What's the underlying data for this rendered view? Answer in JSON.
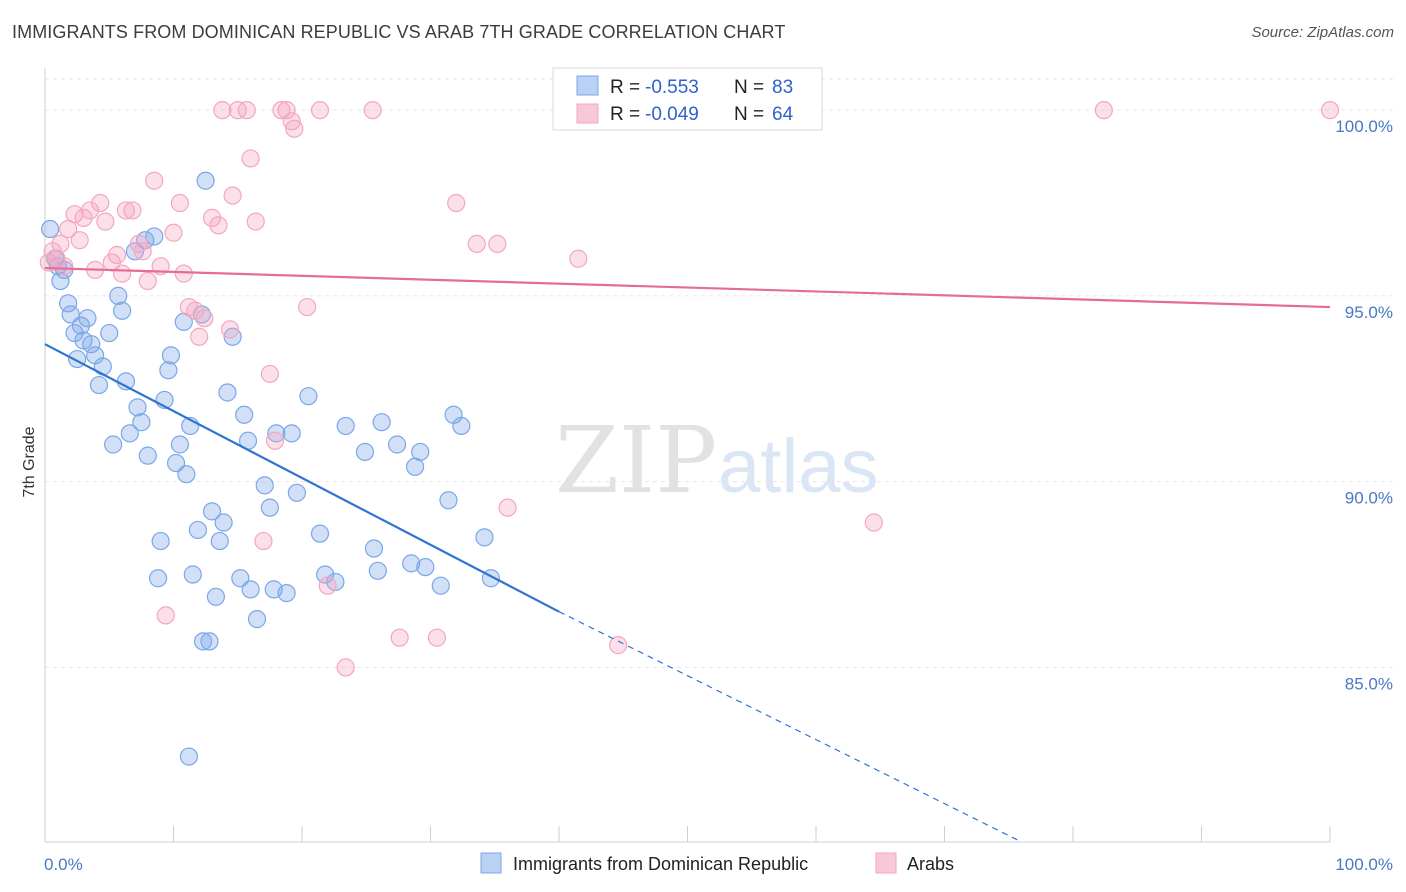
{
  "title": "IMMIGRANTS FROM DOMINICAN REPUBLIC VS ARAB 7TH GRADE CORRELATION CHART",
  "source": "Source: ZipAtlas.com",
  "watermark": {
    "zip": "ZIP",
    "atlas": "atlas"
  },
  "legend": {
    "rows": [
      {
        "r_label": "R =",
        "r_value": "-0.553",
        "n_label": "N =",
        "n_value": "83"
      },
      {
        "r_label": "R =",
        "r_value": "-0.049",
        "n_label": "N =",
        "n_value": "64"
      }
    ]
  },
  "chart_data": {
    "type": "scatter",
    "title": "IMMIGRANTS FROM DOMINICAN REPUBLIC VS ARAB 7TH GRADE CORRELATION CHART",
    "xlabel": "",
    "ylabel": "7th Grade",
    "xlim": [
      0,
      100
    ],
    "ylim": [
      80.3,
      101.0
    ],
    "x_tick_labels": [
      "0.0%",
      "100.0%"
    ],
    "y_ticks": [
      85,
      90,
      95,
      100
    ],
    "y_tick_labels": [
      "85.0%",
      "90.0%",
      "95.0%",
      "100.0%"
    ],
    "grid": true,
    "legend_position": "top-center",
    "series": [
      {
        "name": "Immigrants from Dominican Republic",
        "color": "#7aa7e8",
        "line_color": "#2f74d0",
        "R": -0.553,
        "N": 83,
        "trend": {
          "x0": 0.0,
          "y0": 93.7,
          "x1": 40.0,
          "y1": 86.5,
          "dash_to_x": 76.0,
          "dash_to_y": 80.3
        },
        "points": [
          [
            0.4,
            96.8
          ],
          [
            0.8,
            96.0
          ],
          [
            1.0,
            95.8
          ],
          [
            1.2,
            95.4
          ],
          [
            1.5,
            95.7
          ],
          [
            1.8,
            94.8
          ],
          [
            2.0,
            94.5
          ],
          [
            2.3,
            94.0
          ],
          [
            2.5,
            93.3
          ],
          [
            2.8,
            94.2
          ],
          [
            3.0,
            93.8
          ],
          [
            3.3,
            94.4
          ],
          [
            3.6,
            93.7
          ],
          [
            3.9,
            93.4
          ],
          [
            4.2,
            92.6
          ],
          [
            4.5,
            93.1
          ],
          [
            5.0,
            94.0
          ],
          [
            5.3,
            91.0
          ],
          [
            5.7,
            95.0
          ],
          [
            6.0,
            94.6
          ],
          [
            6.3,
            92.7
          ],
          [
            6.6,
            91.3
          ],
          [
            7.0,
            96.2
          ],
          [
            7.2,
            92.0
          ],
          [
            7.5,
            91.6
          ],
          [
            7.8,
            96.5
          ],
          [
            8.0,
            90.7
          ],
          [
            8.5,
            96.6
          ],
          [
            8.8,
            87.4
          ],
          [
            9.0,
            88.4
          ],
          [
            9.3,
            92.2
          ],
          [
            9.6,
            93.0
          ],
          [
            9.8,
            93.4
          ],
          [
            10.2,
            90.5
          ],
          [
            10.5,
            91.0
          ],
          [
            10.8,
            94.3
          ],
          [
            11.0,
            90.2
          ],
          [
            11.3,
            91.5
          ],
          [
            11.5,
            87.5
          ],
          [
            11.9,
            88.7
          ],
          [
            12.2,
            94.5
          ],
          [
            12.5,
            98.1
          ],
          [
            12.8,
            85.7
          ],
          [
            13.0,
            89.2
          ],
          [
            13.3,
            86.9
          ],
          [
            13.6,
            88.4
          ],
          [
            13.9,
            88.9
          ],
          [
            14.2,
            92.4
          ],
          [
            14.6,
            93.9
          ],
          [
            15.2,
            87.4
          ],
          [
            15.5,
            91.8
          ],
          [
            15.8,
            91.1
          ],
          [
            16.0,
            87.1
          ],
          [
            16.5,
            86.3
          ],
          [
            17.1,
            89.9
          ],
          [
            17.5,
            89.3
          ],
          [
            17.8,
            87.1
          ],
          [
            18.0,
            91.3
          ],
          [
            18.8,
            87.0
          ],
          [
            19.2,
            91.3
          ],
          [
            19.6,
            89.7
          ],
          [
            20.5,
            92.3
          ],
          [
            21.4,
            88.6
          ],
          [
            21.8,
            87.5
          ],
          [
            22.6,
            87.3
          ],
          [
            23.4,
            91.5
          ],
          [
            24.9,
            90.8
          ],
          [
            25.6,
            88.2
          ],
          [
            25.9,
            87.6
          ],
          [
            26.2,
            91.6
          ],
          [
            27.4,
            91.0
          ],
          [
            28.5,
            87.8
          ],
          [
            28.8,
            90.4
          ],
          [
            29.2,
            90.8
          ],
          [
            29.6,
            87.7
          ],
          [
            30.8,
            87.2
          ],
          [
            31.8,
            91.8
          ],
          [
            32.4,
            91.5
          ],
          [
            34.2,
            88.5
          ],
          [
            34.7,
            87.4
          ],
          [
            11.2,
            82.6
          ],
          [
            12.3,
            85.7
          ],
          [
            31.4,
            89.5
          ]
        ]
      },
      {
        "name": "Arabs",
        "color": "#f4a6c0",
        "line_color": "#e56d93",
        "R": -0.049,
        "N": 64,
        "trend": {
          "x0": 0.0,
          "y0": 95.75,
          "x1": 100.0,
          "y1": 94.7
        },
        "points": [
          [
            0.3,
            95.9
          ],
          [
            0.6,
            96.2
          ],
          [
            0.9,
            96.0
          ],
          [
            1.2,
            96.4
          ],
          [
            1.5,
            95.8
          ],
          [
            1.8,
            96.8
          ],
          [
            2.3,
            97.2
          ],
          [
            2.7,
            96.5
          ],
          [
            3.0,
            97.1
          ],
          [
            3.5,
            97.3
          ],
          [
            3.9,
            95.7
          ],
          [
            4.3,
            97.5
          ],
          [
            4.7,
            97.0
          ],
          [
            5.2,
            95.9
          ],
          [
            5.6,
            96.1
          ],
          [
            6.0,
            95.6
          ],
          [
            6.3,
            97.3
          ],
          [
            6.8,
            97.3
          ],
          [
            7.3,
            96.4
          ],
          [
            7.6,
            96.2
          ],
          [
            8.0,
            95.4
          ],
          [
            8.5,
            98.1
          ],
          [
            9.0,
            95.8
          ],
          [
            9.4,
            86.4
          ],
          [
            10.0,
            96.7
          ],
          [
            10.5,
            97.5
          ],
          [
            10.8,
            95.6
          ],
          [
            11.2,
            94.7
          ],
          [
            11.7,
            94.6
          ],
          [
            12.0,
            93.9
          ],
          [
            12.4,
            94.4
          ],
          [
            13.0,
            97.1
          ],
          [
            13.5,
            96.9
          ],
          [
            13.8,
            100.0
          ],
          [
            14.4,
            94.1
          ],
          [
            14.6,
            97.7
          ],
          [
            15.0,
            100.0
          ],
          [
            15.7,
            100.0
          ],
          [
            16.0,
            98.7
          ],
          [
            16.4,
            97.0
          ],
          [
            17.0,
            88.4
          ],
          [
            17.5,
            92.9
          ],
          [
            17.9,
            91.1
          ],
          [
            18.4,
            100.0
          ],
          [
            18.8,
            100.0
          ],
          [
            19.2,
            99.7
          ],
          [
            19.4,
            99.5
          ],
          [
            20.4,
            94.7
          ],
          [
            21.4,
            100.0
          ],
          [
            22.0,
            87.2
          ],
          [
            23.4,
            85.0
          ],
          [
            25.5,
            100.0
          ],
          [
            27.6,
            85.8
          ],
          [
            30.5,
            85.8
          ],
          [
            32.0,
            97.5
          ],
          [
            33.6,
            96.4
          ],
          [
            35.2,
            96.4
          ],
          [
            36.0,
            89.3
          ],
          [
            41.5,
            96.0
          ],
          [
            44.6,
            85.6
          ],
          [
            55.5,
            100.0
          ],
          [
            64.5,
            88.9
          ],
          [
            82.4,
            100.0
          ],
          [
            100.0,
            100.0
          ]
        ]
      }
    ]
  }
}
